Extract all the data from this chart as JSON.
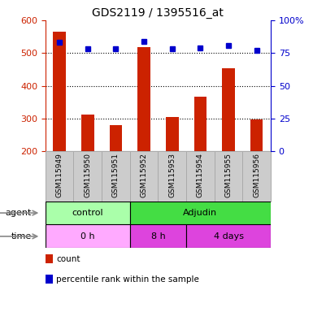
{
  "title": "GDS2119 / 1395516_at",
  "samples": [
    "GSM115949",
    "GSM115950",
    "GSM115951",
    "GSM115952",
    "GSM115953",
    "GSM115954",
    "GSM115955",
    "GSM115956"
  ],
  "bar_values": [
    565,
    313,
    280,
    518,
    305,
    367,
    453,
    298
  ],
  "percentile_values": [
    83,
    78,
    78,
    84,
    78,
    79,
    81,
    77
  ],
  "bar_color": "#cc2200",
  "dot_color": "#0000cc",
  "ylim_left": [
    200,
    600
  ],
  "ylim_right": [
    0,
    100
  ],
  "yticks_left": [
    200,
    300,
    400,
    500,
    600
  ],
  "ytick_labels_left": [
    "200",
    "300",
    "400",
    "500",
    "600"
  ],
  "yticks_right": [
    0,
    25,
    50,
    75,
    100
  ],
  "ytick_labels_right": [
    "0",
    "25",
    "50",
    "75",
    "100%"
  ],
  "hgrid_at": [
    300,
    400,
    500
  ],
  "agent_groups": [
    {
      "label": "control",
      "span": [
        0,
        3
      ],
      "color": "#aaffaa"
    },
    {
      "label": "Adjudin",
      "span": [
        3,
        8
      ],
      "color": "#44dd44"
    }
  ],
  "time_groups": [
    {
      "label": "0 h",
      "span": [
        0,
        3
      ],
      "color": "#ffaaff"
    },
    {
      "label": "8 h",
      "span": [
        3,
        5
      ],
      "color": "#dd44dd"
    },
    {
      "label": "4 days",
      "span": [
        5,
        8
      ],
      "color": "#dd44dd"
    }
  ],
  "agent_label": "agent",
  "time_label": "time",
  "count_legend": "count",
  "pct_legend": "percentile rank within the sample",
  "left_tick_color": "#cc2200",
  "right_tick_color": "#0000cc",
  "sample_bg_color": "#cccccc",
  "sample_border_color": "#aaaaaa",
  "bar_width": 0.45
}
